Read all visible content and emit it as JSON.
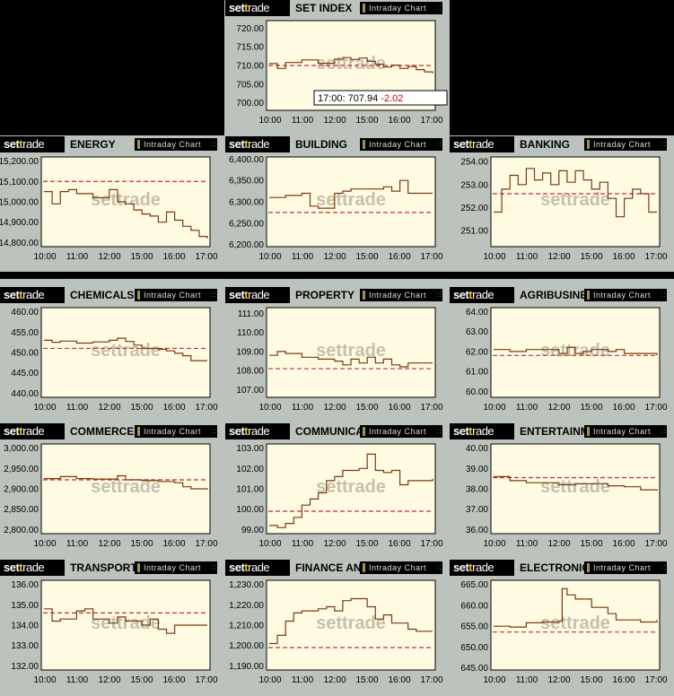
{
  "brand": {
    "a": "set",
    "b": "t",
    "c": "rade"
  },
  "intraday_label": "Intraday Chart",
  "colors": {
    "plot_bg": "#fffbe2",
    "line": "#7a3a10",
    "ref": "#c03030",
    "band": "#bcc3bc"
  },
  "tooltip": {
    "time": "17:00:",
    "value": "707.94",
    "change": "-2.02"
  },
  "chart_data": [
    {
      "type": "line",
      "title": "SET INDEX",
      "prev_close": 710,
      "ylim": [
        698,
        722
      ],
      "y_ticks": [
        "700.00",
        "705.00",
        "710.00",
        "715.00",
        "720.00"
      ],
      "y_tick_values": [
        700,
        705,
        710,
        715,
        720
      ],
      "x_ticks": [
        "10:00",
        "11:00",
        "12:00",
        "15:00",
        "16:00",
        "17:00"
      ],
      "x": [
        0,
        0.05,
        0.1,
        0.2,
        0.3,
        0.4,
        0.45,
        0.5,
        0.55,
        0.6,
        0.65,
        0.7,
        0.75,
        0.8,
        0.85,
        0.9,
        0.95,
        1
      ],
      "y": [
        710.5,
        709.2,
        710.8,
        711.5,
        710.6,
        711.7,
        712.1,
        711.6,
        712.0,
        711.1,
        710.3,
        709.6,
        710.1,
        709.2,
        709.7,
        708.9,
        708.3,
        707.9
      ]
    },
    {
      "type": "line",
      "title": "ENERGY",
      "prev_close": 15100,
      "ylim": [
        14780,
        15220
      ],
      "y_ticks": [
        "14,800.00",
        "14,900.00",
        "15,000.00",
        "15,100.00",
        "15,200.00"
      ],
      "y_tick_values": [
        14800,
        14900,
        15000,
        15100,
        15200
      ],
      "x_ticks": [
        "10:00",
        "11:00",
        "12:00",
        "15:00",
        "16:00",
        "17:00"
      ],
      "x": [
        0,
        0.05,
        0.1,
        0.15,
        0.2,
        0.3,
        0.4,
        0.45,
        0.5,
        0.55,
        0.6,
        0.65,
        0.7,
        0.75,
        0.8,
        0.85,
        0.9,
        0.95,
        1
      ],
      "y": [
        15050,
        14990,
        15050,
        15060,
        15040,
        15020,
        15060,
        15000,
        14990,
        14960,
        14940,
        14930,
        14900,
        14950,
        14910,
        14880,
        14860,
        14830,
        14820
      ]
    },
    {
      "type": "line",
      "title": "BUILDING",
      "prev_close": 6275,
      "ylim": [
        6195,
        6405
      ],
      "y_ticks": [
        "6,200.00",
        "6,250.00",
        "6,300.00",
        "6,350.00",
        "6,400.00"
      ],
      "y_tick_values": [
        6200,
        6250,
        6300,
        6350,
        6400
      ],
      "x_ticks": [
        "10:00",
        "11:00",
        "12:00",
        "15:00",
        "16:00",
        "17:00"
      ],
      "x": [
        0,
        0.1,
        0.2,
        0.25,
        0.3,
        0.4,
        0.45,
        0.5,
        0.6,
        0.7,
        0.75,
        0.8,
        0.85,
        0.9,
        1
      ],
      "y": [
        6310,
        6315,
        6320,
        6290,
        6285,
        6320,
        6325,
        6330,
        6330,
        6335,
        6325,
        6350,
        6320,
        6320,
        6320
      ]
    },
    {
      "type": "line",
      "title": "BANKING",
      "prev_close": 252.6,
      "ylim": [
        250.3,
        254.2
      ],
      "y_ticks": [
        "251.00",
        "252.00",
        "253.00",
        "254.00"
      ],
      "y_tick_values": [
        251,
        252,
        253,
        254
      ],
      "x_ticks": [
        "10:00",
        "11:00",
        "12:00",
        "15:00",
        "16:00",
        "17:00"
      ],
      "x": [
        0,
        0.05,
        0.1,
        0.15,
        0.2,
        0.25,
        0.3,
        0.35,
        0.4,
        0.45,
        0.5,
        0.55,
        0.6,
        0.65,
        0.7,
        0.75,
        0.8,
        0.85,
        0.9,
        0.95,
        1
      ],
      "y": [
        251.8,
        252.8,
        253.4,
        253.0,
        253.7,
        253.2,
        253.5,
        253.0,
        253.6,
        253.1,
        253.6,
        253.2,
        252.8,
        253.1,
        252.4,
        251.6,
        252.4,
        252.8,
        252.6,
        251.8,
        251.8
      ]
    },
    {
      "type": "line",
      "title": "CHEMICALS",
      "prev_close": 451,
      "ylim": [
        439,
        461
      ],
      "y_ticks": [
        "440.00",
        "445.00",
        "450.00",
        "455.00",
        "460.00"
      ],
      "y_tick_values": [
        440,
        445,
        450,
        455,
        460
      ],
      "x_ticks": [
        "10:00",
        "11:00",
        "12:00",
        "15:00",
        "16:00",
        "17:00"
      ],
      "x": [
        0,
        0.05,
        0.1,
        0.2,
        0.3,
        0.4,
        0.45,
        0.5,
        0.55,
        0.6,
        0.7,
        0.75,
        0.8,
        0.85,
        0.9,
        1
      ],
      "y": [
        453,
        452.5,
        452.8,
        452.3,
        452.6,
        453.0,
        453.5,
        452.7,
        451.8,
        451.0,
        450.8,
        450.4,
        449.8,
        449.2,
        448.0,
        448.0
      ]
    },
    {
      "type": "line",
      "title": "PROPERTY",
      "prev_close": 108.1,
      "ylim": [
        106.6,
        111.3
      ],
      "y_ticks": [
        "107.00",
        "108.00",
        "109.00",
        "110.00",
        "111.00"
      ],
      "y_tick_values": [
        107,
        108,
        109,
        110,
        111
      ],
      "x_ticks": [
        "10:00",
        "11:00",
        "12:00",
        "15:00",
        "16:00",
        "17:00"
      ],
      "x": [
        0,
        0.05,
        0.1,
        0.2,
        0.3,
        0.4,
        0.45,
        0.5,
        0.55,
        0.6,
        0.65,
        0.7,
        0.75,
        0.8,
        0.85,
        0.9,
        1
      ],
      "y": [
        108.8,
        109.0,
        108.9,
        108.7,
        108.6,
        108.5,
        108.3,
        108.6,
        108.4,
        108.7,
        108.4,
        108.6,
        108.3,
        108.2,
        108.4,
        108.4,
        108.4
      ]
    },
    {
      "type": "line",
      "title": "AGRIBUSINESS",
      "prev_close": 61.8,
      "ylim": [
        59.7,
        64.2
      ],
      "y_ticks": [
        "60.00",
        "61.00",
        "62.00",
        "63.00",
        "64.00"
      ],
      "y_tick_values": [
        60,
        61,
        62,
        63,
        64
      ],
      "x_ticks": [
        "10:00",
        "11:00",
        "12:00",
        "15:00",
        "16:00",
        "17:00"
      ],
      "x": [
        0,
        0.1,
        0.2,
        0.3,
        0.4,
        0.45,
        0.5,
        0.55,
        0.6,
        0.7,
        0.75,
        0.8,
        0.9,
        1
      ],
      "y": [
        62.1,
        62.0,
        62.1,
        62.1,
        61.9,
        62.2,
        61.9,
        62.0,
        62.1,
        62.0,
        62.1,
        61.9,
        61.9,
        61.8
      ]
    },
    {
      "type": "line",
      "title": "COMMERCE",
      "prev_close": 2922,
      "ylim": [
        2790,
        3010
      ],
      "y_ticks": [
        "2,800.00",
        "2,850.00",
        "2,900.00",
        "2,950.00",
        "3,000.00"
      ],
      "y_tick_values": [
        2800,
        2850,
        2900,
        2950,
        3000
      ],
      "x_ticks": [
        "10:00",
        "11:00",
        "12:00",
        "15:00",
        "16:00",
        "17:00"
      ],
      "x": [
        0,
        0.1,
        0.2,
        0.3,
        0.4,
        0.45,
        0.5,
        0.6,
        0.7,
        0.8,
        0.85,
        0.9,
        1
      ],
      "y": [
        2925,
        2930,
        2925,
        2924,
        2924,
        2932,
        2922,
        2920,
        2918,
        2915,
        2905,
        2900,
        2898
      ]
    },
    {
      "type": "line",
      "title": "COMMUNICATION",
      "prev_close": 99.9,
      "ylim": [
        98.8,
        103.2
      ],
      "y_ticks": [
        "99.00",
        "100.00",
        "101.00",
        "102.00",
        "103.00"
      ],
      "y_tick_values": [
        99,
        100,
        101,
        102,
        103
      ],
      "x_ticks": [
        "10:00",
        "11:00",
        "12:00",
        "15:00",
        "16:00",
        "17:00"
      ],
      "x": [
        0,
        0.05,
        0.1,
        0.15,
        0.2,
        0.25,
        0.3,
        0.35,
        0.4,
        0.45,
        0.5,
        0.55,
        0.6,
        0.65,
        0.7,
        0.75,
        0.8,
        0.85,
        0.9,
        1
      ],
      "y": [
        99.2,
        99.1,
        99.3,
        99.6,
        100.2,
        100.5,
        100.8,
        101.4,
        101.6,
        101.9,
        101.9,
        102.0,
        102.7,
        101.9,
        101.8,
        101.9,
        101.2,
        101.4,
        101.4,
        101.5
      ]
    },
    {
      "type": "line",
      "title": "ENTERTAINMENT",
      "prev_close": 38.55,
      "ylim": [
        35.8,
        40.2
      ],
      "y_ticks": [
        "36.00",
        "37.00",
        "38.00",
        "39.00",
        "40.00"
      ],
      "y_tick_values": [
        36,
        37,
        38,
        39,
        40
      ],
      "x_ticks": [
        "10:00",
        "11:00",
        "12:00",
        "15:00",
        "16:00",
        "17:00"
      ],
      "x": [
        0,
        0.1,
        0.2,
        0.3,
        0.4,
        0.5,
        0.6,
        0.7,
        0.8,
        0.9,
        1
      ],
      "y": [
        38.6,
        38.4,
        38.3,
        38.3,
        38.2,
        38.25,
        38.25,
        38.15,
        38.1,
        37.95,
        37.9
      ]
    },
    {
      "type": "line",
      "title": "TRANSPORTATION",
      "prev_close": 134.6,
      "ylim": [
        131.8,
        136.2
      ],
      "y_ticks": [
        "132.00",
        "133.00",
        "134.00",
        "135.00",
        "136.00"
      ],
      "y_tick_values": [
        132,
        133,
        134,
        135,
        136
      ],
      "x_ticks": [
        "10:00",
        "11:00",
        "12:00",
        "15:00",
        "16:00",
        "17:00"
      ],
      "x": [
        0,
        0.05,
        0.1,
        0.2,
        0.25,
        0.3,
        0.4,
        0.45,
        0.5,
        0.6,
        0.65,
        0.7,
        0.75,
        0.8,
        0.9,
        1
      ],
      "y": [
        134.8,
        134.2,
        134.3,
        134.7,
        134.8,
        134.3,
        134.1,
        134.4,
        134.2,
        134.0,
        134.3,
        133.8,
        133.6,
        134.0,
        134.0,
        134.0
      ]
    },
    {
      "type": "line",
      "title": "FINANCE AND SECURITIES",
      "prev_close": 1199,
      "ylim": [
        1188,
        1232
      ],
      "y_ticks": [
        "1,190.00",
        "1,200.00",
        "1,210.00",
        "1,220.00",
        "1,230.00"
      ],
      "y_tick_values": [
        1190,
        1200,
        1210,
        1220,
        1230
      ],
      "x_ticks": [
        "10:00",
        "11:00",
        "12:00",
        "15:00",
        "16:00",
        "17:00"
      ],
      "x": [
        0,
        0.05,
        0.1,
        0.15,
        0.2,
        0.3,
        0.35,
        0.4,
        0.45,
        0.5,
        0.55,
        0.6,
        0.65,
        0.7,
        0.75,
        0.8,
        0.85,
        0.9,
        1
      ],
      "y": [
        1201,
        1205,
        1212,
        1216,
        1217,
        1218,
        1219,
        1217,
        1222,
        1223,
        1223,
        1219,
        1213,
        1215,
        1211,
        1211,
        1208,
        1207,
        1207
      ]
    },
    {
      "type": "line",
      "title": "ELECTRONIC",
      "prev_close": 653.6,
      "ylim": [
        644.5,
        666
      ],
      "y_ticks": [
        "645.00",
        "650.00",
        "655.00",
        "660.00",
        "665.00"
      ],
      "y_tick_values": [
        645,
        650,
        655,
        660,
        665
      ],
      "x_ticks": [
        "10:00",
        "11:00",
        "12:00",
        "15:00",
        "16:00",
        "17:00"
      ],
      "x": [
        0,
        0.1,
        0.2,
        0.3,
        0.4,
        0.42,
        0.45,
        0.5,
        0.6,
        0.7,
        0.75,
        0.8,
        0.9,
        1
      ],
      "y": [
        655,
        654.8,
        655.8,
        656.0,
        656.2,
        664.0,
        662.5,
        661.5,
        659.5,
        658.0,
        656.5,
        656.5,
        656.0,
        656.5
      ]
    }
  ]
}
